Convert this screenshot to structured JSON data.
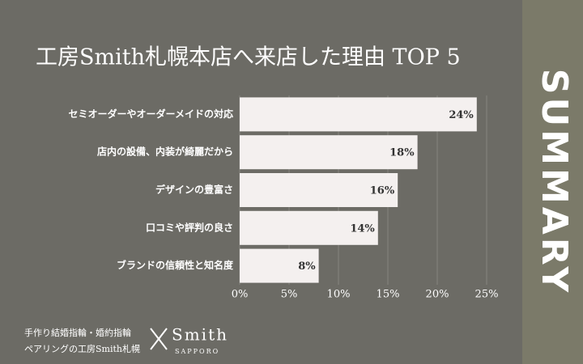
{
  "chart_data": {
    "type": "barh",
    "title": "工房Smith札幌本店へ来店した理由 TOP 5",
    "categories": [
      "セミオーダーやオーダーメイドの対応",
      "店内の設備、内装が綺麗だから",
      "デザインの豊富さ",
      "口コミや評判の良さ",
      "ブランドの信頼性と知名度"
    ],
    "values": [
      24,
      18,
      16,
      14,
      8
    ],
    "value_labels": [
      "24%",
      "18%",
      "16%",
      "14%",
      "8%"
    ],
    "color": "#f4f0ef",
    "xlim": [
      0,
      25
    ],
    "xticks": [
      {
        "value": 0,
        "label": "0%"
      },
      {
        "value": 5,
        "label": "5%"
      },
      {
        "value": 10,
        "label": "10%"
      },
      {
        "value": 15,
        "label": "15%"
      },
      {
        "value": 20,
        "label": "20%"
      },
      {
        "value": 25,
        "label": "25%"
      }
    ],
    "grid": true
  },
  "side_label": "SUMMARY",
  "footer": {
    "line1": "手作り結婚指輪・婚約指輪",
    "line2": "ペアリングの工房Smith札幌",
    "logo": "Smith",
    "logo_sub": "SAPPORO"
  }
}
